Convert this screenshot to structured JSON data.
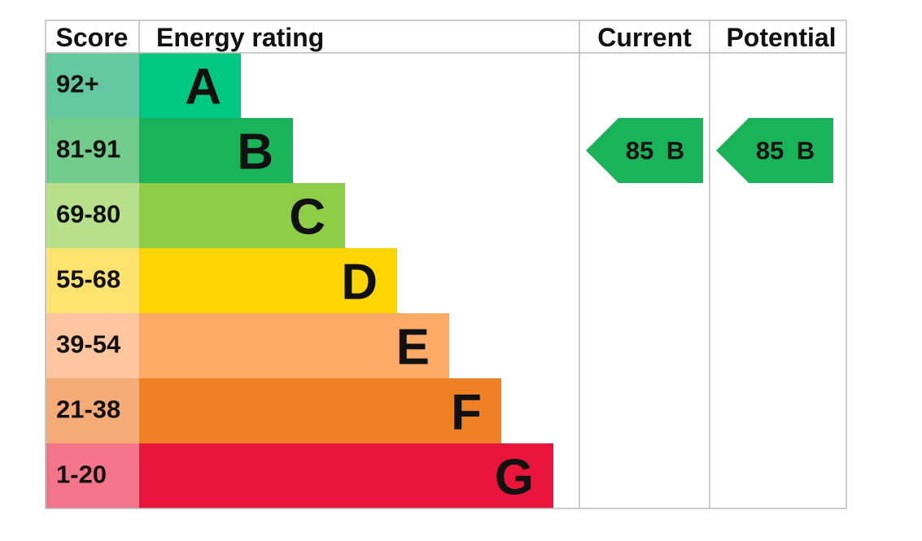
{
  "header": {
    "score": "Score",
    "rating": "Energy rating",
    "current": "Current",
    "potential": "Potential"
  },
  "bands": [
    {
      "score": "92+",
      "letter": "A",
      "color": "#00c781",
      "score_color": "#63c8a0"
    },
    {
      "score": "81-91",
      "letter": "B",
      "color": "#19b459",
      "score_color": "#72cc8b"
    },
    {
      "score": "69-80",
      "letter": "C",
      "color": "#8dce46",
      "score_color": "#b6e08a"
    },
    {
      "score": "55-68",
      "letter": "D",
      "color": "#ffd500",
      "score_color": "#ffe36e"
    },
    {
      "score": "39-54",
      "letter": "E",
      "color": "#fcaa65",
      "score_color": "#fdc69e"
    },
    {
      "score": "21-38",
      "letter": "F",
      "color": "#ef8023",
      "score_color": "#f5ab75"
    },
    {
      "score": "1-20",
      "letter": "G",
      "color": "#e9153b",
      "score_color": "#f47489"
    }
  ],
  "current": {
    "value": 85,
    "letter": "B"
  },
  "potential": {
    "value": 85,
    "letter": "B"
  }
}
